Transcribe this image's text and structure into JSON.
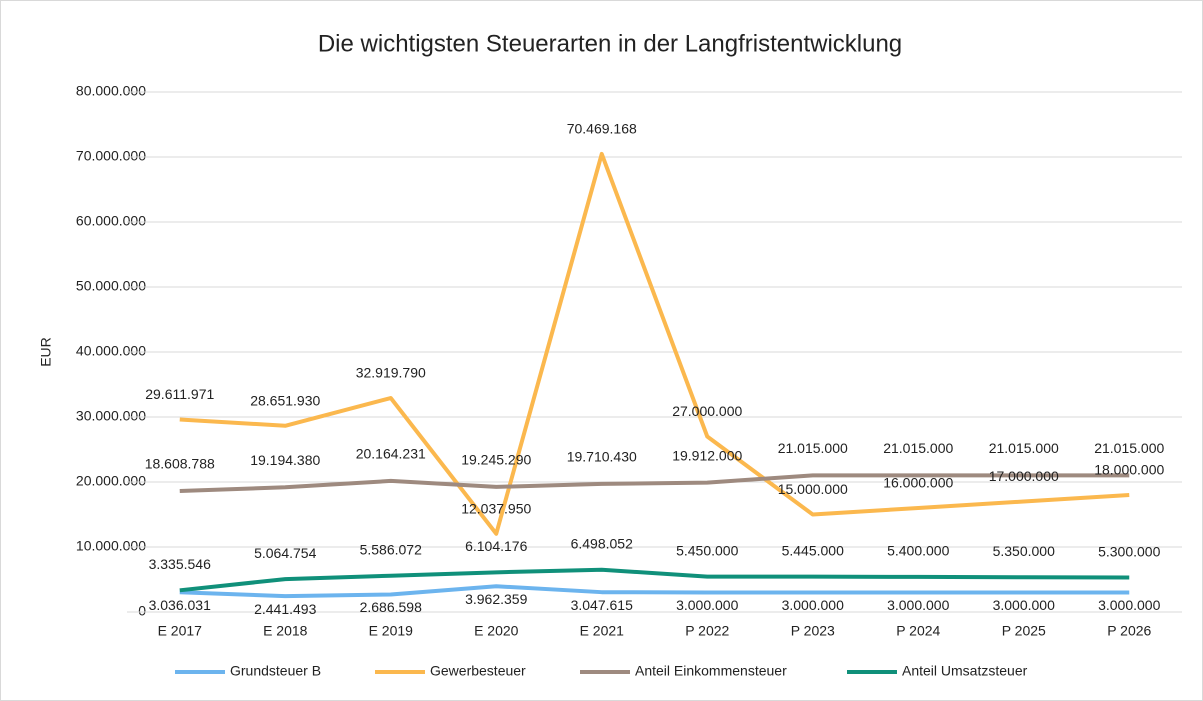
{
  "chart_data": {
    "type": "line",
    "title": "Die wichtigsten Steuerarten in der Langfristentwicklung",
    "y_label": "EUR",
    "categories": [
      "E 2017",
      "E 2018",
      "E 2019",
      "E 2020",
      "E 2021",
      "P 2022",
      "P 2023",
      "P 2024",
      "P 2025",
      "P 2026"
    ],
    "ylim": [
      0,
      80000000
    ],
    "yticks": [
      0,
      {
        "value": 10000000,
        "label": "10.000.000"
      },
      {
        "value": 20000000,
        "label": "20.000.000"
      },
      {
        "value": 30000000,
        "label": "30.000.000"
      },
      {
        "value": 40000000,
        "label": "40.000.000"
      },
      {
        "value": 50000000,
        "label": "50.000.000"
      },
      {
        "value": 60000000,
        "label": "60.000.000"
      },
      {
        "value": 70000000,
        "label": "70.000.000"
      },
      {
        "value": 80000000,
        "label": "80.000.000"
      }
    ],
    "grid": true,
    "legend": "bottom",
    "series": [
      {
        "name": "Grundsteuer B",
        "color": "#6cb4ee",
        "values": [
          3036031,
          2441493,
          2686598,
          3962359,
          3047615,
          3000000,
          3000000,
          3000000,
          3000000,
          3000000
        ],
        "value_labels": [
          "3.036.031",
          "2.441.493",
          "2.686.598",
          "3.962.359",
          "3.047.615",
          "3.000.000",
          "3.000.000",
          "3.000.000",
          "3.000.000",
          "3.000.000"
        ]
      },
      {
        "name": "Gewerbesteuer",
        "color": "#fbb84e",
        "values": [
          29611971,
          28651930,
          32919790,
          12037950,
          70469168,
          27000000,
          15000000,
          16000000,
          17000000,
          18000000
        ],
        "value_labels": [
          "29.611.971",
          "28.651.930",
          "32.919.790",
          "12.037.950",
          "70.469.168",
          "27.000.000",
          "15.000.000",
          "16.000.000",
          "17.000.000",
          "18.000.000"
        ]
      },
      {
        "name": "Anteil Einkommensteuer",
        "color": "#9e8a7f",
        "values": [
          18608788,
          19194380,
          20164231,
          19245290,
          19710430,
          19912000,
          21015000,
          21015000,
          21015000,
          21015000
        ],
        "value_labels": [
          "18.608.788",
          "19.194.380",
          "20.164.231",
          "19.245.290",
          "19.710.430",
          "19.912.000",
          "21.015.000",
          "21.015.000",
          "21.015.000",
          "21.015.000"
        ]
      },
      {
        "name": "Anteil Umsatzsteuer",
        "color": "#10907a",
        "values": [
          3335546,
          5064754,
          5586072,
          6104176,
          6498052,
          5450000,
          5445000,
          5400000,
          5350000,
          5300000
        ],
        "value_labels": [
          "3.335.546",
          "5.064.754",
          "5.586.072",
          "6.104.176",
          "6.498.052",
          "5.450.000",
          "5.445.000",
          "5.400.000",
          "5.350.000",
          "5.300.000"
        ]
      }
    ]
  }
}
